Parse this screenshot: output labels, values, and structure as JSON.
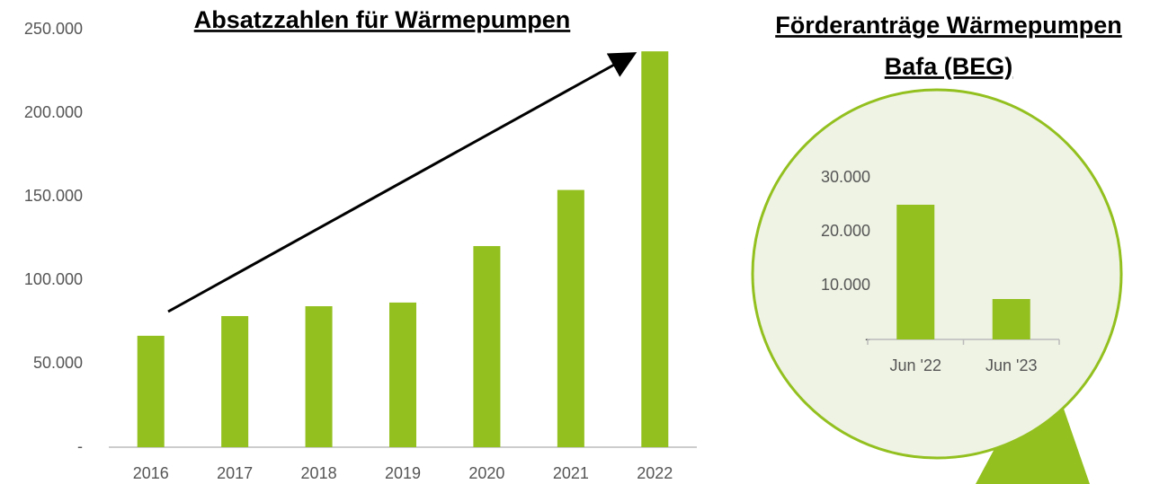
{
  "chart_data": [
    {
      "type": "bar",
      "title": "Absatzzahlen für Wärmepumpen",
      "categories": [
        "2016",
        "2017",
        "2018",
        "2019",
        "2020",
        "2021",
        "2022"
      ],
      "values": [
        66700,
        78500,
        84400,
        86600,
        120400,
        154000,
        237000
      ],
      "color": "#93c01f",
      "ylim": [
        0,
        250000
      ],
      "yticks": [
        {
          "value": 0,
          "label": "-"
        },
        {
          "value": 50000,
          "label": "50.000"
        },
        {
          "value": 100000,
          "label": "100.000"
        },
        {
          "value": 150000,
          "label": "150.000"
        },
        {
          "value": 200000,
          "label": "200.000"
        },
        {
          "value": 250000,
          "label": "250.000"
        }
      ]
    },
    {
      "type": "bar",
      "title": [
        "Förderanträge Wärmepumpen",
        "Bafa (BEG)"
      ],
      "categories": [
        "Jun '22",
        "Jun '23"
      ],
      "values": [
        25000,
        7500
      ],
      "color": "#93c01f",
      "ylim": [
        0,
        30000
      ],
      "yticks": [
        {
          "value": 0,
          "label": "-"
        },
        {
          "value": 10000,
          "label": "10.000"
        },
        {
          "value": 20000,
          "label": "20.000"
        },
        {
          "value": 30000,
          "label": "30.000"
        }
      ]
    }
  ]
}
